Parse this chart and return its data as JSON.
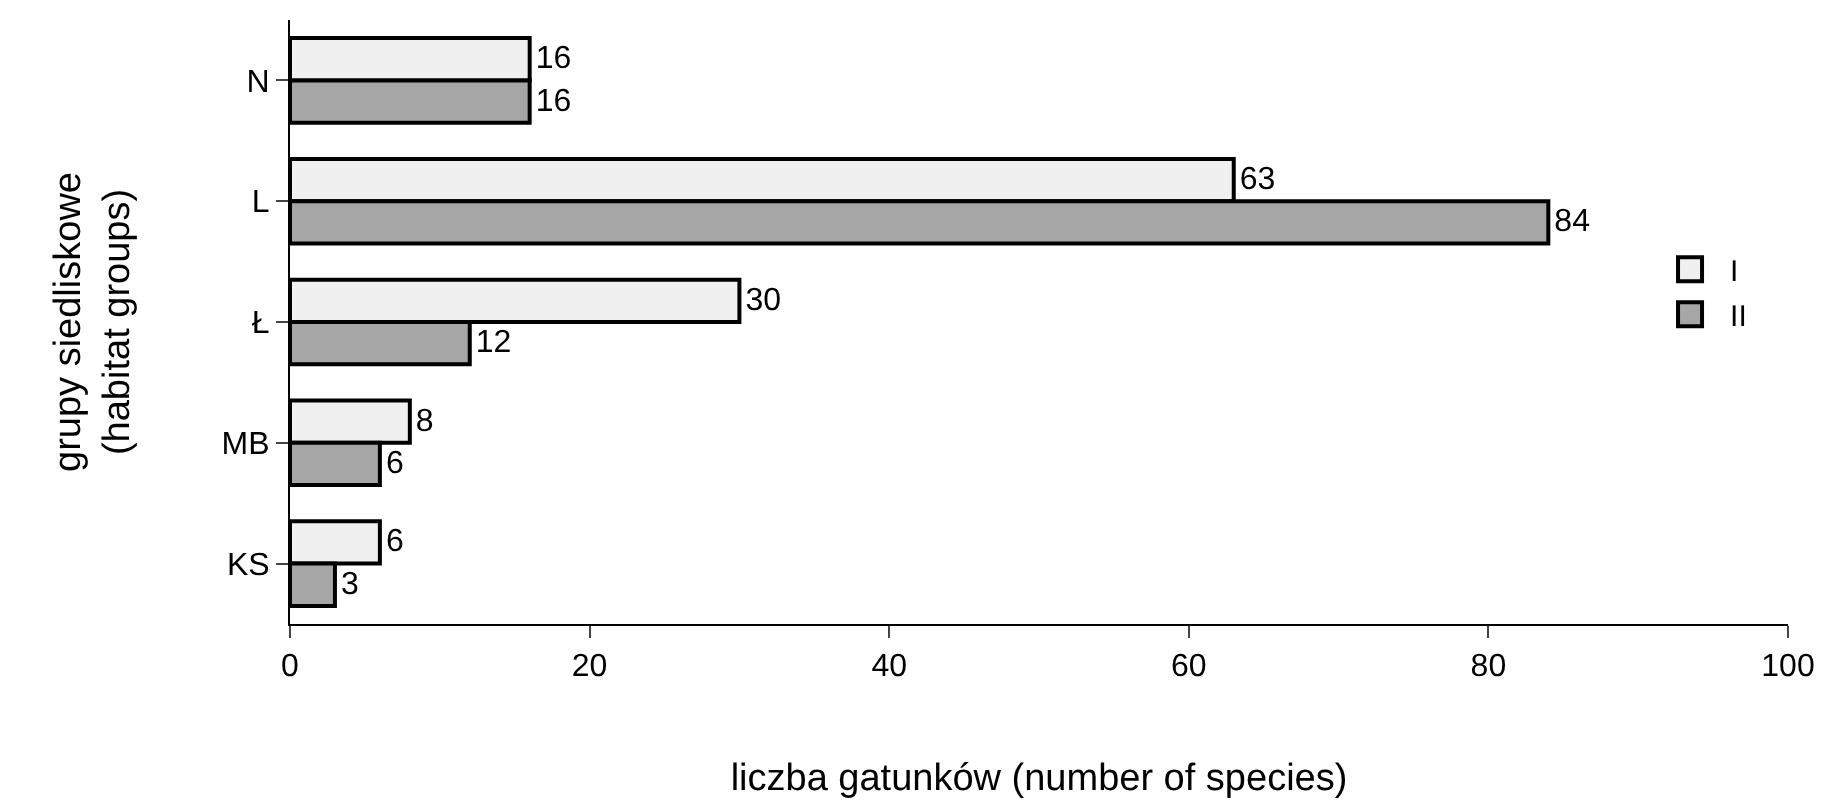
{
  "chart_data": {
    "type": "bar",
    "orientation": "horizontal",
    "xlabel": "liczba gatunków (number of species)",
    "ylabel": "grupy siedliskowe\n(habitat groups)",
    "categories": [
      "N",
      "L",
      "Ł",
      "MB",
      "KS"
    ],
    "series": [
      {
        "name": "I",
        "color": "#f0f0f0",
        "values": [
          16,
          63,
          30,
          8,
          6
        ]
      },
      {
        "name": "II",
        "color": "#a6a6a6",
        "values": [
          16,
          84,
          12,
          6,
          3
        ]
      }
    ],
    "xlim": [
      0,
      100
    ],
    "xticks": [
      0,
      20,
      40,
      60,
      80,
      100
    ],
    "legend": "right",
    "data_labels": true
  }
}
